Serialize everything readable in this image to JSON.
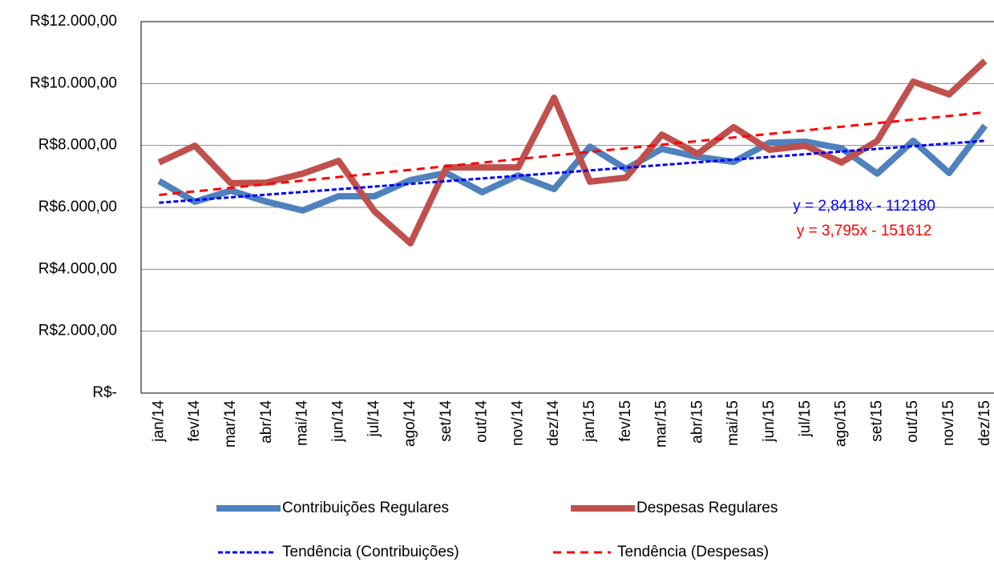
{
  "chart_data": {
    "type": "line",
    "categories": [
      "jan/14",
      "fev/14",
      "mar/14",
      "abr/14",
      "mai/14",
      "jun/14",
      "jul/14",
      "ago/14",
      "set/14",
      "out/14",
      "nov/14",
      "dez/14",
      "jan/15",
      "fev/15",
      "mar/15",
      "abr/15",
      "mai/15",
      "jun/15",
      "jul/15",
      "ago/15",
      "set/15",
      "out/15",
      "nov/15",
      "dez/15"
    ],
    "series": [
      {
        "name": "Contribuições Regulares",
        "color": "#4f81bd",
        "style": "solid",
        "values": [
          6850,
          6180,
          6540,
          6180,
          5900,
          6360,
          6360,
          6880,
          7110,
          6490,
          7030,
          6590,
          7960,
          7240,
          7890,
          7630,
          7470,
          8090,
          8120,
          7910,
          7090,
          8150,
          7110,
          8640
        ]
      },
      {
        "name": "Despesas Regulares",
        "color": "#c0504d",
        "style": "solid",
        "values": [
          7450,
          7990,
          6780,
          6800,
          7090,
          7500,
          5870,
          4840,
          7290,
          7290,
          7290,
          9540,
          6830,
          6960,
          8350,
          7730,
          8590,
          7860,
          7990,
          7450,
          8150,
          10060,
          9650,
          10730
        ]
      },
      {
        "name": "Tendência (Contribuições)",
        "color": "#0000ff",
        "style": "dashed",
        "values": [
          6150,
          6237,
          6324,
          6411,
          6498,
          6585,
          6672,
          6759,
          6846,
          6933,
          7020,
          7107,
          7194,
          7281,
          7368,
          7455,
          7542,
          7629,
          7716,
          7803,
          7890,
          7977,
          8064,
          8151
        ]
      },
      {
        "name": "Tendência (Despesas)",
        "color": "#ff0000",
        "style": "dashed",
        "values": [
          6400,
          6516,
          6632,
          6748,
          6864,
          6980,
          7096,
          7212,
          7328,
          7444,
          7560,
          7676,
          7792,
          7908,
          8024,
          8140,
          8256,
          8372,
          8488,
          8604,
          8720,
          8836,
          8952,
          9068
        ]
      }
    ],
    "annotations": [
      {
        "text": "y = 2,8418x - 112180",
        "color": "#0000ff"
      },
      {
        "text": "y = 3,795x - 151612",
        "color": "#ff0000"
      }
    ],
    "ylim": [
      0,
      12000
    ],
    "yticks": [
      {
        "value": 0,
        "label": "R$-"
      },
      {
        "value": 2000,
        "label": "R$2.000,00"
      },
      {
        "value": 4000,
        "label": "R$4.000,00"
      },
      {
        "value": 6000,
        "label": "R$6.000,00"
      },
      {
        "value": 8000,
        "label": "R$8.000,00"
      },
      {
        "value": 10000,
        "label": "R$10.000,00"
      },
      {
        "value": 12000,
        "label": "R$12.000,00"
      }
    ],
    "grid": true
  }
}
